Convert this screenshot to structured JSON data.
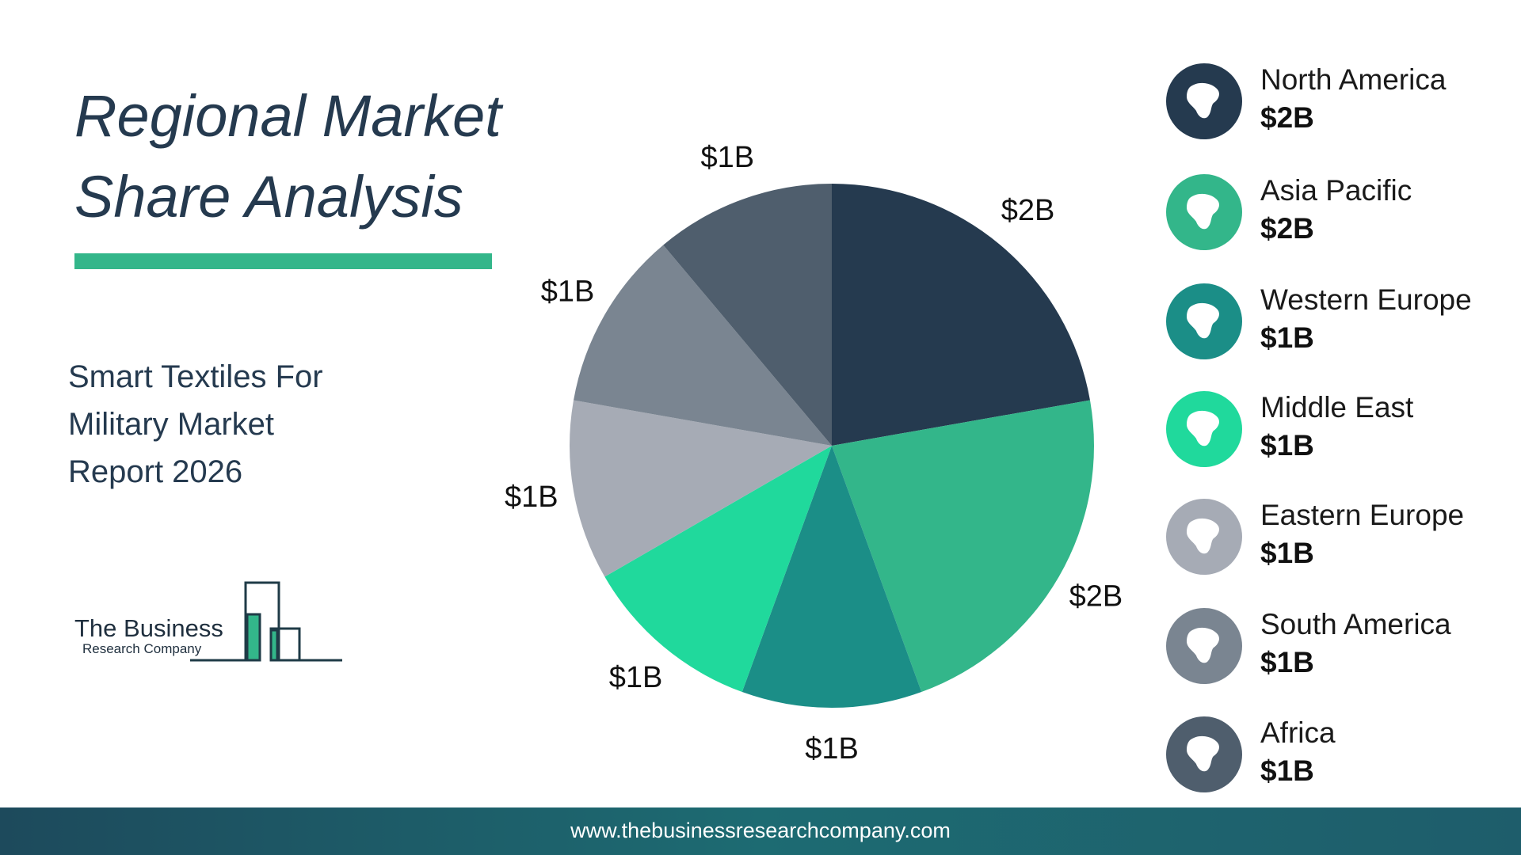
{
  "header": {
    "title_line1": "Regional Market",
    "title_line2": "Share Analysis",
    "accent_color": "#33b68a"
  },
  "subtitle": {
    "line1": "Smart Textiles For",
    "line2": "Military Market",
    "line3": "Report 2026"
  },
  "logo": {
    "name": "The Business",
    "sub": "Research Company"
  },
  "chart_data": {
    "type": "pie",
    "start_angle_deg": 0,
    "direction": "clockwise",
    "categories": [
      "North America",
      "Asia Pacific",
      "Western Europe",
      "Middle East",
      "Eastern Europe",
      "South America",
      "Africa"
    ],
    "values": [
      2,
      2,
      1,
      1,
      1,
      1,
      1
    ],
    "labels": [
      "$2B",
      "$2B",
      "$1B",
      "$1B",
      "$1B",
      "$1B",
      "$1B"
    ],
    "colors": [
      "#253a4f",
      "#33b68a",
      "#1b8e87",
      "#20d99c",
      "#a6abb5",
      "#7a8591",
      "#4f5e6d"
    ],
    "unit": "$B"
  },
  "legend": {
    "items": [
      {
        "name": "North America",
        "value": "$2B",
        "color": "#253a4f",
        "icon": "north-america-map-icon"
      },
      {
        "name": "Asia Pacific",
        "value": "$2B",
        "color": "#33b68a",
        "icon": "asia-pacific-map-icon"
      },
      {
        "name": "Western Europe",
        "value": "$1B",
        "color": "#1b8e87",
        "icon": "western-europe-map-icon"
      },
      {
        "name": "Middle East",
        "value": "$1B",
        "color": "#20d99c",
        "icon": "middle-east-map-icon"
      },
      {
        "name": "Eastern Europe",
        "value": "$1B",
        "color": "#a6abb5",
        "icon": "eastern-europe-map-icon"
      },
      {
        "name": "South America",
        "value": "$1B",
        "color": "#7a8591",
        "icon": "south-america-map-icon"
      },
      {
        "name": "Africa",
        "value": "$1B",
        "color": "#4f5e6d",
        "icon": "africa-map-icon"
      }
    ]
  },
  "footer": {
    "url": "www.thebusinessresearchcompany.com"
  }
}
